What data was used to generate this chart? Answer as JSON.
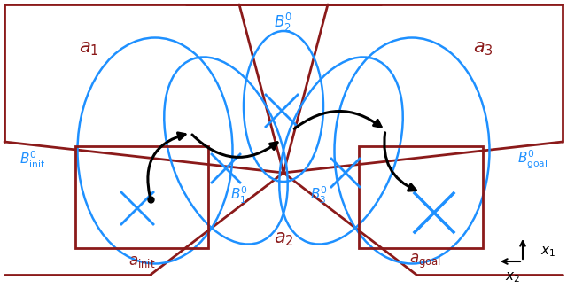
{
  "bg_color": "#ffffff",
  "dark_red": "#8B1A1A",
  "blue": "#1E90FF",
  "black": "#000000",
  "fig_width": 6.4,
  "fig_height": 3.25,
  "dpi": 100
}
